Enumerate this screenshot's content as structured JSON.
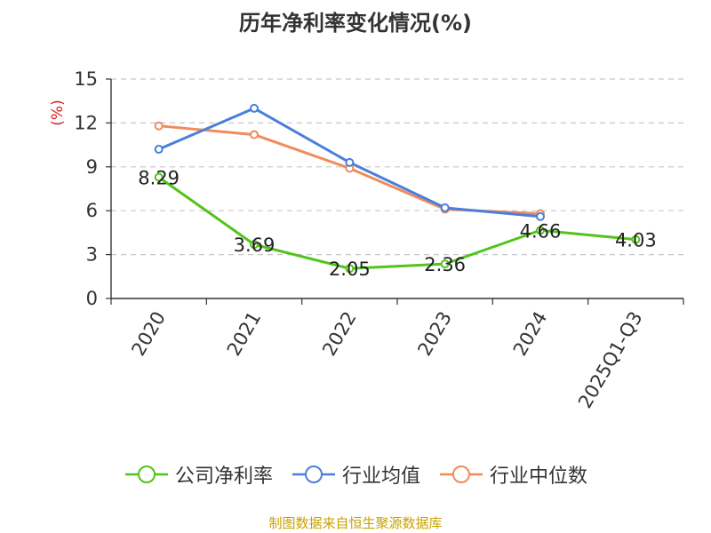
{
  "chart_data": {
    "type": "line",
    "title": "历年净利率变化情况(%)",
    "ylabel": "(%)",
    "xlabel": "",
    "categories": [
      "2020",
      "2021",
      "2022",
      "2023",
      "2024",
      "2025Q1-Q3"
    ],
    "ylim": [
      0,
      15
    ],
    "yticks": [
      0,
      3,
      6,
      9,
      12,
      15
    ],
    "grid": true,
    "legend_position": "bottom",
    "series": [
      {
        "name": "公司净利率",
        "color": "#52c41a",
        "values": [
          8.29,
          3.69,
          2.05,
          2.36,
          4.66,
          4.03
        ],
        "labels": [
          "8.29",
          "3.69",
          "2.05",
          "2.36",
          "4.66",
          "4.03"
        ]
      },
      {
        "name": "行业均值",
        "color": "#4a7fdc",
        "values": [
          10.2,
          13.0,
          9.3,
          6.2,
          5.6,
          null
        ]
      },
      {
        "name": "行业中位数",
        "color": "#f28a5a",
        "values": [
          11.8,
          11.2,
          8.9,
          6.1,
          5.8,
          null
        ]
      }
    ],
    "source": "制图数据来自恒生聚源数据库"
  }
}
